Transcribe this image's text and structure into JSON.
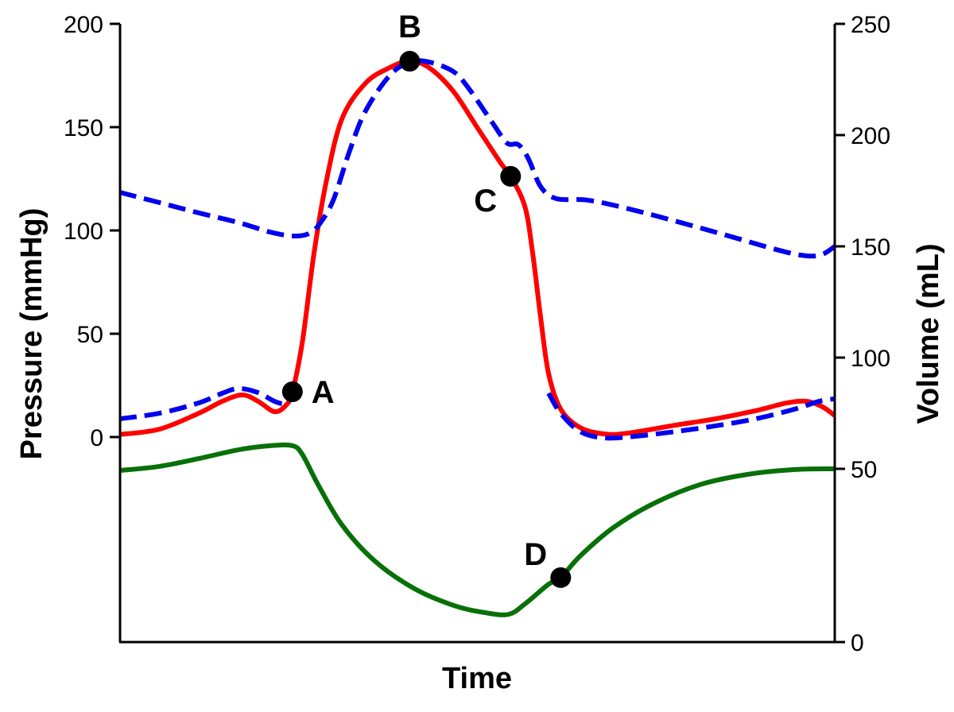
{
  "chart_data": {
    "type": "line",
    "xlabel": "Time",
    "ylabel_left": "Pressure (mmHg)",
    "ylabel_right": "Volume (mL)",
    "x_range": [
      0,
      1
    ],
    "left_ylim": [
      -99,
      200
    ],
    "left_ticks": [
      0,
      50,
      100,
      150,
      200
    ],
    "right_ylim": [
      0,
      250
    ],
    "right_ticks": [
      0,
      50,
      100,
      150,
      200,
      250
    ],
    "grid": false,
    "legend": "none",
    "series": [
      {
        "axis": "left",
        "color": "#ff0000",
        "style": "solid",
        "points": [
          [
            0,
            1.2
          ],
          [
            0.056,
            3.8
          ],
          [
            0.111,
            11.5
          ],
          [
            0.144,
            17.3
          ],
          [
            0.172,
            20.4
          ],
          [
            0.194,
            17.3
          ],
          [
            0.217,
            12.3
          ],
          [
            0.233,
            15.4
          ],
          [
            0.242,
            21.9
          ],
          [
            0.256,
            46.2
          ],
          [
            0.272,
            88.5
          ],
          [
            0.289,
            123.1
          ],
          [
            0.311,
            153.8
          ],
          [
            0.344,
            171.2
          ],
          [
            0.378,
            178.8
          ],
          [
            0.406,
            181.9
          ],
          [
            0.433,
            178.8
          ],
          [
            0.467,
            167.3
          ],
          [
            0.5,
            150
          ],
          [
            0.533,
            132.7
          ],
          [
            0.547,
            126.2
          ],
          [
            0.567,
            111.5
          ],
          [
            0.578,
            88.5
          ],
          [
            0.589,
            57.7
          ],
          [
            0.6,
            30.8
          ],
          [
            0.617,
            13.5
          ],
          [
            0.644,
            4.6
          ],
          [
            0.678,
            1.5
          ],
          [
            0.711,
            1.9
          ],
          [
            0.778,
            5.8
          ],
          [
            0.833,
            8.8
          ],
          [
            0.889,
            12.7
          ],
          [
            0.933,
            16.5
          ],
          [
            0.961,
            17.3
          ],
          [
            0.983,
            14.6
          ],
          [
            1,
            10.4
          ]
        ]
      },
      {
        "axis": "left",
        "color": "#0000ee",
        "style": "dashed",
        "points": [
          [
            0,
            118.5
          ],
          [
            0.056,
            113.5
          ],
          [
            0.111,
            108.5
          ],
          [
            0.167,
            103.8
          ],
          [
            0.211,
            99.2
          ],
          [
            0.244,
            97.3
          ],
          [
            0.267,
            98.8
          ],
          [
            0.283,
            104.6
          ],
          [
            0.3,
            115.4
          ],
          [
            0.322,
            138.5
          ],
          [
            0.344,
            157.7
          ],
          [
            0.378,
            175
          ],
          [
            0.406,
            181.5
          ],
          [
            0.433,
            181.5
          ],
          [
            0.467,
            176.9
          ],
          [
            0.489,
            168.5
          ],
          [
            0.522,
            151.9
          ],
          [
            0.542,
            142.3
          ],
          [
            0.558,
            141.5
          ],
          [
            0.572,
            134.6
          ],
          [
            0.589,
            121.2
          ],
          [
            0.611,
            115.4
          ],
          [
            0.656,
            114.6
          ],
          [
            0.722,
            109.6
          ],
          [
            0.833,
            99.2
          ],
          [
            0.922,
            90.4
          ],
          [
            0.961,
            87.7
          ],
          [
            0.983,
            88.5
          ],
          [
            1,
            92.3
          ]
        ]
      },
      {
        "axis": "left",
        "color": "#0000ee",
        "style": "dashed",
        "points": [
          [
            0,
            8.8
          ],
          [
            0.056,
            11.5
          ],
          [
            0.111,
            16.5
          ],
          [
            0.144,
            21.2
          ],
          [
            0.167,
            23.5
          ],
          [
            0.194,
            21.5
          ],
          [
            0.217,
            17.3
          ],
          [
            0.233,
            16.2
          ],
          [
            0.242,
            20
          ]
        ]
      },
      {
        "axis": "left",
        "color": "#0000ee",
        "style": "dashed",
        "points": [
          [
            0.6,
            21.2
          ],
          [
            0.617,
            11.5
          ],
          [
            0.644,
            2.7
          ],
          [
            0.678,
            -0.4
          ],
          [
            0.722,
            0.4
          ],
          [
            0.778,
            2.7
          ],
          [
            0.833,
            5.4
          ],
          [
            0.889,
            8.8
          ],
          [
            0.944,
            13.5
          ],
          [
            0.978,
            17.3
          ],
          [
            1,
            18.5
          ]
        ]
      },
      {
        "axis": "right",
        "color": "#087008",
        "style": "solid",
        "points": [
          [
            0,
            49.5
          ],
          [
            0.056,
            51.1
          ],
          [
            0.111,
            54.6
          ],
          [
            0.167,
            58.6
          ],
          [
            0.211,
            60.4
          ],
          [
            0.242,
            60.4
          ],
          [
            0.256,
            56.4
          ],
          [
            0.278,
            45.4
          ],
          [
            0.311,
            33.9
          ],
          [
            0.356,
            23.6
          ],
          [
            0.411,
            15.6
          ],
          [
            0.467,
            10.6
          ],
          [
            0.511,
            8.5
          ],
          [
            0.544,
            8
          ],
          [
            0.567,
            11
          ],
          [
            0.6,
            16.7
          ],
          [
            0.617,
            18.6
          ],
          [
            0.644,
            24.8
          ],
          [
            0.689,
            32.8
          ],
          [
            0.744,
            39.7
          ],
          [
            0.811,
            45.4
          ],
          [
            0.878,
            48.4
          ],
          [
            0.944,
            49.8
          ],
          [
            1,
            50
          ]
        ]
      }
    ],
    "annotations": [
      {
        "label": "A",
        "axis": "left",
        "x": 0.242,
        "y": 21.9
      },
      {
        "label": "B",
        "axis": "left",
        "x": 0.406,
        "y": 181.9
      },
      {
        "label": "C",
        "axis": "left",
        "x": 0.547,
        "y": 126.2
      },
      {
        "label": "D",
        "axis": "right",
        "x": 0.617,
        "y": 18.6
      }
    ]
  }
}
